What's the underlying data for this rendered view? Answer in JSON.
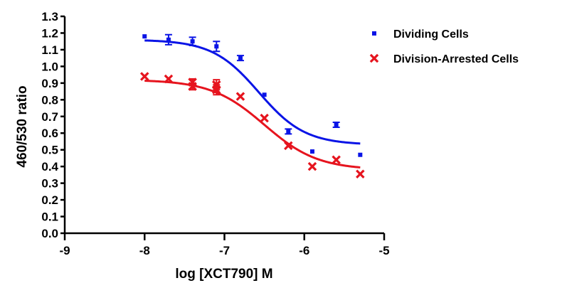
{
  "chart_data": {
    "type": "scatter",
    "xlabel": "log [XCT790] M",
    "ylabel": "460/530  ratio",
    "xlim": [
      -9,
      -5
    ],
    "ylim": [
      0,
      1.3
    ],
    "xticks": [
      "-9",
      "-8",
      "-7",
      "-6",
      "-5"
    ],
    "yticks": [
      "0.0",
      "0.1",
      "0.2",
      "0.3",
      "0.4",
      "0.5",
      "0.6",
      "0.7",
      "0.8",
      "0.9",
      "1.0",
      "1.1",
      "1.2",
      "1.3"
    ],
    "legend_position": "top-right",
    "grid": false,
    "series": [
      {
        "name": "Dividing Cells",
        "color": "#0a14e6",
        "marker": "square",
        "x": [
          -8.0,
          -7.7,
          -7.4,
          -7.1,
          -6.8,
          -6.5,
          -6.2,
          -5.9,
          -5.6,
          -5.3
        ],
        "y": [
          1.18,
          1.16,
          1.15,
          1.12,
          1.05,
          0.83,
          0.61,
          0.49,
          0.65,
          0.47
        ],
        "err": [
          0,
          0.03,
          0.025,
          0.03,
          0.015,
          0,
          0.015,
          0,
          0.015,
          0
        ],
        "fit": {
          "top": 1.16,
          "bottom": 0.53,
          "logEC50": -6.57,
          "hill": 1.5
        }
      },
      {
        "name": "Division-Arrested Cells",
        "color": "#e6141e",
        "marker": "cross",
        "x": [
          -8.0,
          -7.7,
          -7.4,
          -7.4,
          -7.1,
          -7.1,
          -6.8,
          -6.5,
          -6.2,
          -5.9,
          -5.6,
          -5.3
        ],
        "y": [
          0.94,
          0.925,
          0.905,
          0.88,
          0.89,
          0.86,
          0.82,
          0.69,
          0.525,
          0.4,
          0.44,
          0.355
        ],
        "err": [
          0,
          0,
          0.02,
          0.02,
          0.03,
          0.03,
          0,
          0,
          0,
          0,
          0,
          0
        ],
        "fit": {
          "top": 0.92,
          "bottom": 0.38,
          "logEC50": -6.5,
          "hill": 1.3
        }
      }
    ]
  }
}
